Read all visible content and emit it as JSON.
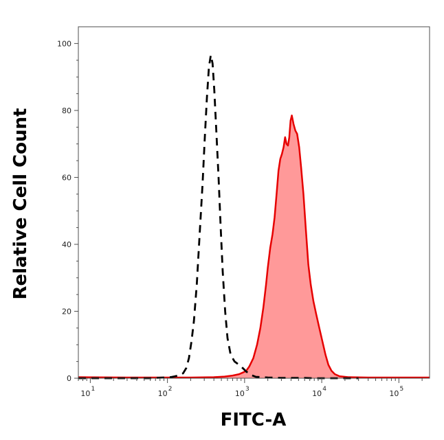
{
  "chart_data": {
    "type": "area",
    "title": "",
    "xlabel": "FITC-A",
    "ylabel": "Relative Cell Count",
    "x_scale": "log",
    "xlim": [
      7,
      250000
    ],
    "ylim": [
      0,
      105
    ],
    "y_ticks": [
      0,
      20,
      40,
      60,
      80,
      100
    ],
    "x_ticks": [
      {
        "base": "10",
        "exp": "1",
        "value": 10
      },
      {
        "base": "10",
        "exp": "2",
        "value": 100
      },
      {
        "base": "10",
        "exp": "3",
        "value": 1000
      },
      {
        "base": "10",
        "exp": "4",
        "value": 10000
      },
      {
        "base": "10",
        "exp": "5",
        "value": 100000
      }
    ],
    "grid": false,
    "legend": "none",
    "series": [
      {
        "style": "dashed",
        "color": "#000000",
        "fill": "none",
        "points": [
          [
            7,
            0
          ],
          [
            30,
            0
          ],
          [
            60,
            0
          ],
          [
            110,
            0.3
          ],
          [
            140,
            0.8
          ],
          [
            160,
            1.5
          ],
          [
            175,
            3
          ],
          [
            190,
            6
          ],
          [
            205,
            11
          ],
          [
            220,
            17
          ],
          [
            240,
            28
          ],
          [
            260,
            42
          ],
          [
            285,
            58
          ],
          [
            305,
            72
          ],
          [
            325,
            84
          ],
          [
            345,
            93
          ],
          [
            365,
            96.5
          ],
          [
            385,
            94
          ],
          [
            405,
            86
          ],
          [
            430,
            74
          ],
          [
            460,
            60
          ],
          [
            490,
            45
          ],
          [
            520,
            32
          ],
          [
            560,
            20
          ],
          [
            600,
            12
          ],
          [
            660,
            7
          ],
          [
            740,
            5
          ],
          [
            850,
            4
          ],
          [
            950,
            3
          ],
          [
            1050,
            2
          ],
          [
            1200,
            1
          ],
          [
            1400,
            0.4
          ],
          [
            1700,
            0.3
          ],
          [
            2000,
            0.2
          ],
          [
            3000,
            0.1
          ],
          [
            4500,
            0.1
          ],
          [
            6000,
            0.1
          ],
          [
            8000,
            0
          ],
          [
            12000,
            0
          ],
          [
            30000,
            0
          ]
        ]
      },
      {
        "style": "solid",
        "color": "#e60000",
        "fill": "#ff9999",
        "points": [
          [
            7,
            0.3
          ],
          [
            30,
            0.2
          ],
          [
            60,
            0.2
          ],
          [
            120,
            0.2
          ],
          [
            200,
            0.2
          ],
          [
            400,
            0.3
          ],
          [
            550,
            0.5
          ],
          [
            700,
            0.8
          ],
          [
            850,
            1.2
          ],
          [
            950,
            1.7
          ],
          [
            1050,
            2.2
          ],
          [
            1150,
            3.5
          ],
          [
            1300,
            6
          ],
          [
            1450,
            10
          ],
          [
            1600,
            15
          ],
          [
            1750,
            21
          ],
          [
            1900,
            28
          ],
          [
            2000,
            33
          ],
          [
            2150,
            39
          ],
          [
            2300,
            43
          ],
          [
            2450,
            48
          ],
          [
            2600,
            55
          ],
          [
            2750,
            62
          ],
          [
            2900,
            65.5
          ],
          [
            3050,
            67
          ],
          [
            3200,
            69
          ],
          [
            3350,
            72
          ],
          [
            3500,
            70
          ],
          [
            3650,
            69.5
          ],
          [
            3800,
            72
          ],
          [
            3950,
            77
          ],
          [
            4100,
            78.5
          ],
          [
            4300,
            76
          ],
          [
            4550,
            74
          ],
          [
            4800,
            73
          ],
          [
            5100,
            69
          ],
          [
            5400,
            63
          ],
          [
            5800,
            55
          ],
          [
            6200,
            45
          ],
          [
            6700,
            34
          ],
          [
            7200,
            28
          ],
          [
            7800,
            23
          ],
          [
            8500,
            19
          ],
          [
            9300,
            15
          ],
          [
            10200,
            11
          ],
          [
            11200,
            7
          ],
          [
            12200,
            4
          ],
          [
            13400,
            2.2
          ],
          [
            14800,
            1.2
          ],
          [
            17000,
            0.6
          ],
          [
            22000,
            0.3
          ],
          [
            40000,
            0.2
          ],
          [
            80000,
            0.2
          ],
          [
            150000,
            0.2
          ],
          [
            250000,
            0.2
          ]
        ]
      }
    ]
  }
}
